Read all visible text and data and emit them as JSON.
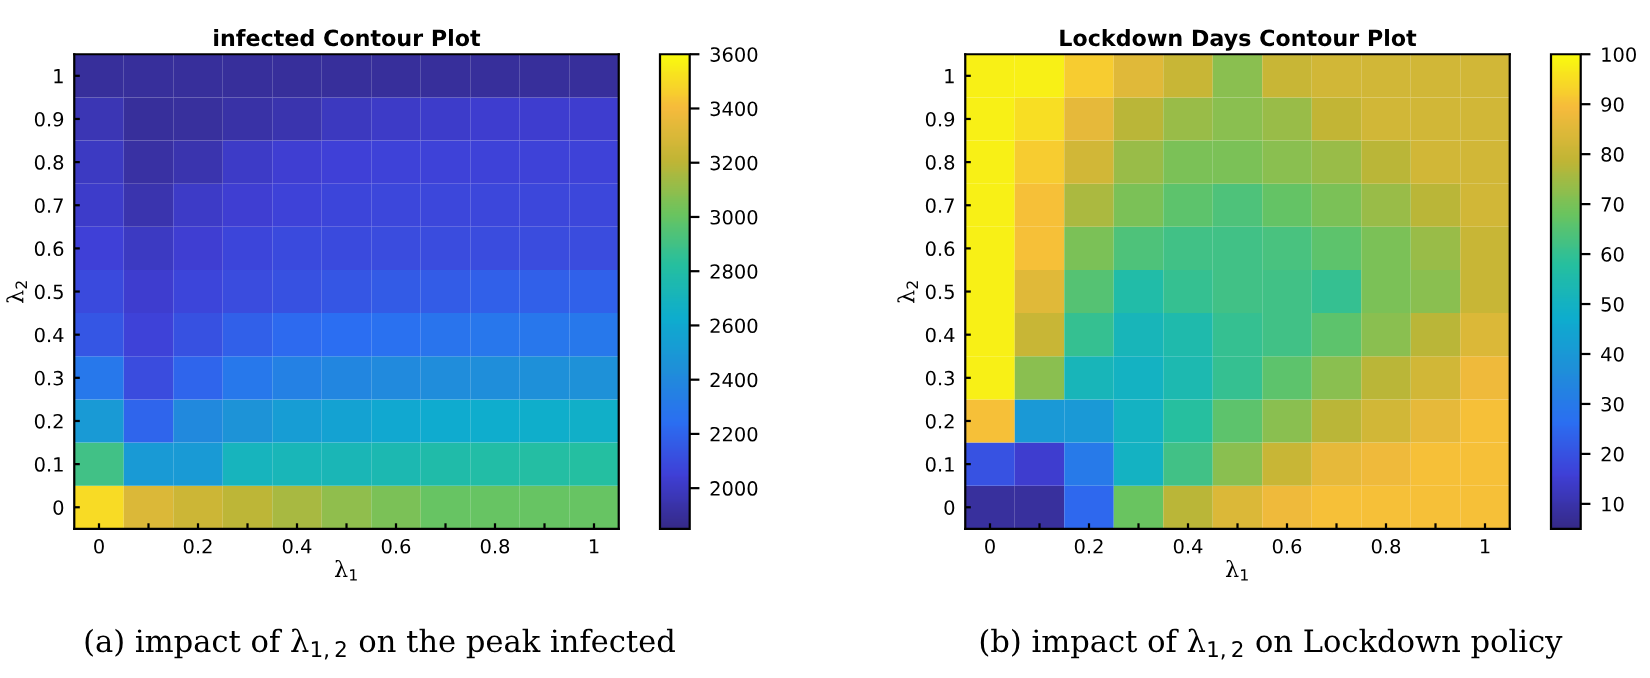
{
  "chart_data": [
    {
      "type": "heatmap",
      "title": "infected Contour Plot",
      "xlabel": "λ$_{1}$",
      "ylabel": "λ$_{2}$",
      "categories": [
        "0",
        null,
        "0.2",
        null,
        "0.4",
        null,
        "0.6",
        null,
        "0.8",
        null,
        "1"
      ],
      "y_categories": [
        "1",
        "0.9",
        "0.8",
        "0.7",
        "0.6",
        "0.5",
        "0.4",
        "0.3",
        "0.2",
        "0.1",
        "0"
      ],
      "cells": [
        [
          1900,
          1900,
          1900,
          1900,
          1900,
          1900,
          1900,
          1900,
          1900,
          1900,
          1900
        ],
        [
          1960,
          1900,
          1910,
          1930,
          1950,
          1990,
          2010,
          2020,
          2030,
          2030,
          2030
        ],
        [
          2000,
          1920,
          1950,
          2010,
          2040,
          2050,
          2060,
          2060,
          2060,
          2060,
          2060
        ],
        [
          2020,
          1950,
          2010,
          2040,
          2060,
          2070,
          2080,
          2080,
          2080,
          2080,
          2080
        ],
        [
          2050,
          2000,
          2040,
          2070,
          2090,
          2090,
          2100,
          2100,
          2100,
          2100,
          2100
        ],
        [
          2090,
          2030,
          2070,
          2100,
          2120,
          2140,
          2160,
          2170,
          2180,
          2180,
          2190
        ],
        [
          2140,
          2060,
          2120,
          2180,
          2220,
          2240,
          2260,
          2280,
          2290,
          2290,
          2300
        ],
        [
          2300,
          2100,
          2200,
          2300,
          2350,
          2380,
          2410,
          2420,
          2430,
          2440,
          2450
        ],
        [
          2500,
          2200,
          2400,
          2460,
          2520,
          2560,
          2600,
          2610,
          2630,
          2640,
          2650
        ],
        [
          2900,
          2500,
          2500,
          2700,
          2720,
          2730,
          2750,
          2780,
          2800,
          2810,
          2820
        ],
        [
          3500,
          3300,
          3250,
          3200,
          3150,
          3100,
          3050,
          3000,
          3000,
          3000,
          3000
        ]
      ],
      "clim": [
        1850,
        3600
      ],
      "cticks": [
        2000,
        2200,
        2400,
        2600,
        2800,
        3000,
        3200,
        3400,
        3600
      ],
      "annotations": [
        "(a) impact of λ$_{1,2}$ on the peak infected"
      ]
    },
    {
      "type": "heatmap",
      "title": "Lockdown Days Contour Plot",
      "xlabel": "λ$_{1}$",
      "ylabel": "λ$_{2}$",
      "categories": [
        "0",
        null,
        "0.2",
        null,
        "0.4",
        null,
        "0.6",
        null,
        "0.8",
        null,
        "1"
      ],
      "y_categories": [
        "1",
        "0.9",
        "0.8",
        "0.7",
        "0.6",
        "0.5",
        "0.4",
        "0.3",
        "0.2",
        "0.1",
        "0"
      ],
      "cells": [
        [
          98,
          98,
          92,
          85,
          80,
          72,
          80,
          82,
          82,
          82,
          82
        ],
        [
          98,
          95,
          86,
          78,
          74,
          72,
          74,
          79,
          82,
          82,
          82
        ],
        [
          98,
          92,
          82,
          74,
          70,
          70,
          72,
          74,
          78,
          82,
          82
        ],
        [
          98,
          90,
          76,
          70,
          66,
          64,
          67,
          70,
          74,
          78,
          82
        ],
        [
          98,
          90,
          70,
          64,
          62,
          62,
          63,
          66,
          70,
          74,
          80
        ],
        [
          98,
          85,
          65,
          56,
          60,
          62,
          62,
          60,
          70,
          72,
          80
        ],
        [
          98,
          80,
          60,
          52,
          55,
          60,
          62,
          66,
          72,
          78,
          84
        ],
        [
          98,
          72,
          52,
          50,
          54,
          60,
          66,
          72,
          78,
          82,
          88
        ],
        [
          90,
          40,
          40,
          50,
          58,
          66,
          72,
          78,
          82,
          86,
          90
        ],
        [
          20,
          15,
          30,
          50,
          62,
          72,
          80,
          86,
          88,
          90,
          90
        ],
        [
          8,
          8,
          25,
          68,
          78,
          84,
          88,
          90,
          90,
          90,
          90
        ]
      ],
      "clim": [
        5,
        100
      ],
      "cticks": [
        10,
        20,
        30,
        40,
        50,
        60,
        70,
        80,
        90,
        100
      ],
      "annotations": [
        "(b) impact of λ$_{1,2}$ on Lockdown policy"
      ]
    }
  ]
}
